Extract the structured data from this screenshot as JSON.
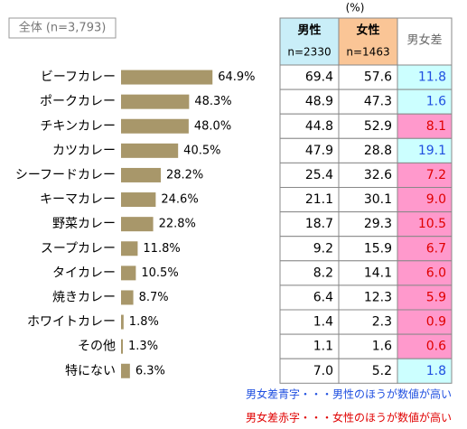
{
  "chart_data": {
    "type": "bar",
    "title": "全体 (n=3,793)",
    "categories": [
      "ビーフカレー",
      "ポークカレー",
      "チキンカレー",
      "カツカレー",
      "シーフードカレー",
      "キーマカレー",
      "野菜カレー",
      "スープカレー",
      "タイカレー",
      "焼きカレー",
      "ホワイトカレー",
      "その他",
      "特にない"
    ],
    "values": [
      64.9,
      48.3,
      48.0,
      40.5,
      28.2,
      24.6,
      22.8,
      11.8,
      10.5,
      8.7,
      1.8,
      1.3,
      6.3
    ],
    "value_labels": [
      "64.9%",
      "48.3%",
      "48.0%",
      "40.5%",
      "28.2%",
      "24.6%",
      "22.8%",
      "11.8%",
      "10.5%",
      "8.7%",
      "1.8%",
      "1.3%",
      "6.3%"
    ],
    "color": "#a8976a",
    "xlim": [
      0,
      100
    ]
  },
  "table": {
    "unit": "(%)",
    "header": {
      "male": "男性",
      "male_n": "n=2330",
      "female": "女性",
      "female_n": "n=1463",
      "diff": "男女差"
    },
    "male_color": "#c9eef8",
    "female_color": "#fac596",
    "diff_male_color": "#1f4fe0",
    "diff_male_bg": "#ccffff",
    "diff_female_color": "#e00000",
    "diff_female_bg": "#ff99cc",
    "rows": [
      [
        "69.4",
        "57.6",
        "11.8"
      ],
      [
        "48.9",
        "47.3",
        "1.6"
      ],
      [
        "44.8",
        "52.9",
        "8.1"
      ],
      [
        "47.9",
        "28.8",
        "19.1"
      ],
      [
        "25.4",
        "32.6",
        "7.2"
      ],
      [
        "21.1",
        "30.1",
        "9.0"
      ],
      [
        "18.7",
        "29.3",
        "10.5"
      ],
      [
        "9.2",
        "15.9",
        "6.7"
      ],
      [
        "8.2",
        "14.1",
        "6.0"
      ],
      [
        "6.4",
        "12.3",
        "5.9"
      ],
      [
        "1.4",
        "2.3",
        "0.9"
      ],
      [
        "1.1",
        "1.6",
        "0.6"
      ],
      [
        "7.0",
        "5.2",
        "1.8"
      ]
    ]
  },
  "notes": [
    "男女差青字・・・男性のほうが数値が高い",
    "男女差赤字・・・女性のほうが数値が高い"
  ]
}
